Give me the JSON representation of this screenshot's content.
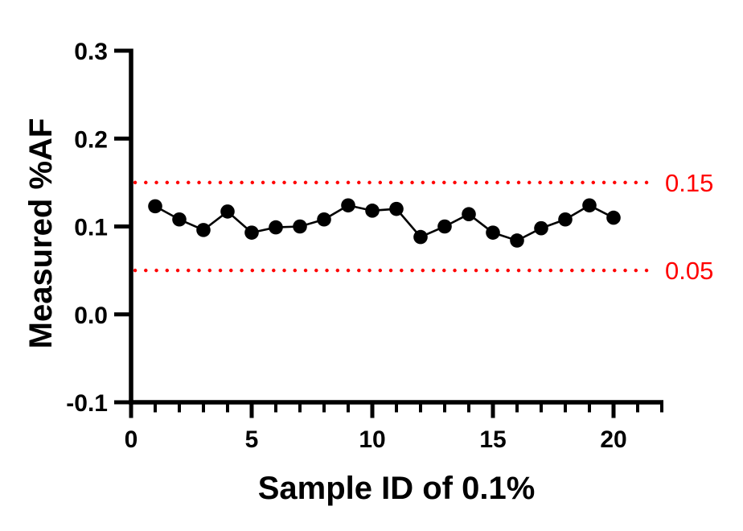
{
  "chart_data": {
    "type": "line",
    "title": "",
    "xlabel": "Sample ID of 0.1%",
    "ylabel": "Measured %AF",
    "x": [
      1,
      2,
      3,
      4,
      5,
      6,
      7,
      8,
      9,
      10,
      11,
      12,
      13,
      14,
      15,
      16,
      17,
      18,
      19,
      20
    ],
    "values": [
      0.123,
      0.108,
      0.096,
      0.117,
      0.093,
      0.099,
      0.1,
      0.108,
      0.124,
      0.118,
      0.12,
      0.088,
      0.1,
      0.114,
      0.093,
      0.084,
      0.098,
      0.108,
      0.124,
      0.11
    ],
    "xlim": [
      0,
      22
    ],
    "ylim": [
      -0.1,
      0.3
    ],
    "xticks_major": [
      0,
      5,
      10,
      15,
      20
    ],
    "xtick_labels": [
      "0",
      "5",
      "10",
      "15",
      "20"
    ],
    "xticks_minor_every": 1,
    "yticks": [
      0.3,
      0.2,
      0.1,
      0.0,
      -0.1
    ],
    "ytick_labels": [
      "0.3",
      "0.2",
      "0.1",
      "0.0",
      "-0.1"
    ],
    "grid": false,
    "legend": "none",
    "marker_shape": "circle",
    "marker_color": "#000000",
    "line_color": "#000000",
    "axis_color": "#000000",
    "background_color": "#FFFFFF",
    "reference_lines": [
      {
        "value": 0.15,
        "label": "0.15",
        "color": "#FF0000",
        "style": "dotted"
      },
      {
        "value": 0.05,
        "label": "0.05",
        "color": "#FF0000",
        "style": "dotted"
      }
    ]
  }
}
